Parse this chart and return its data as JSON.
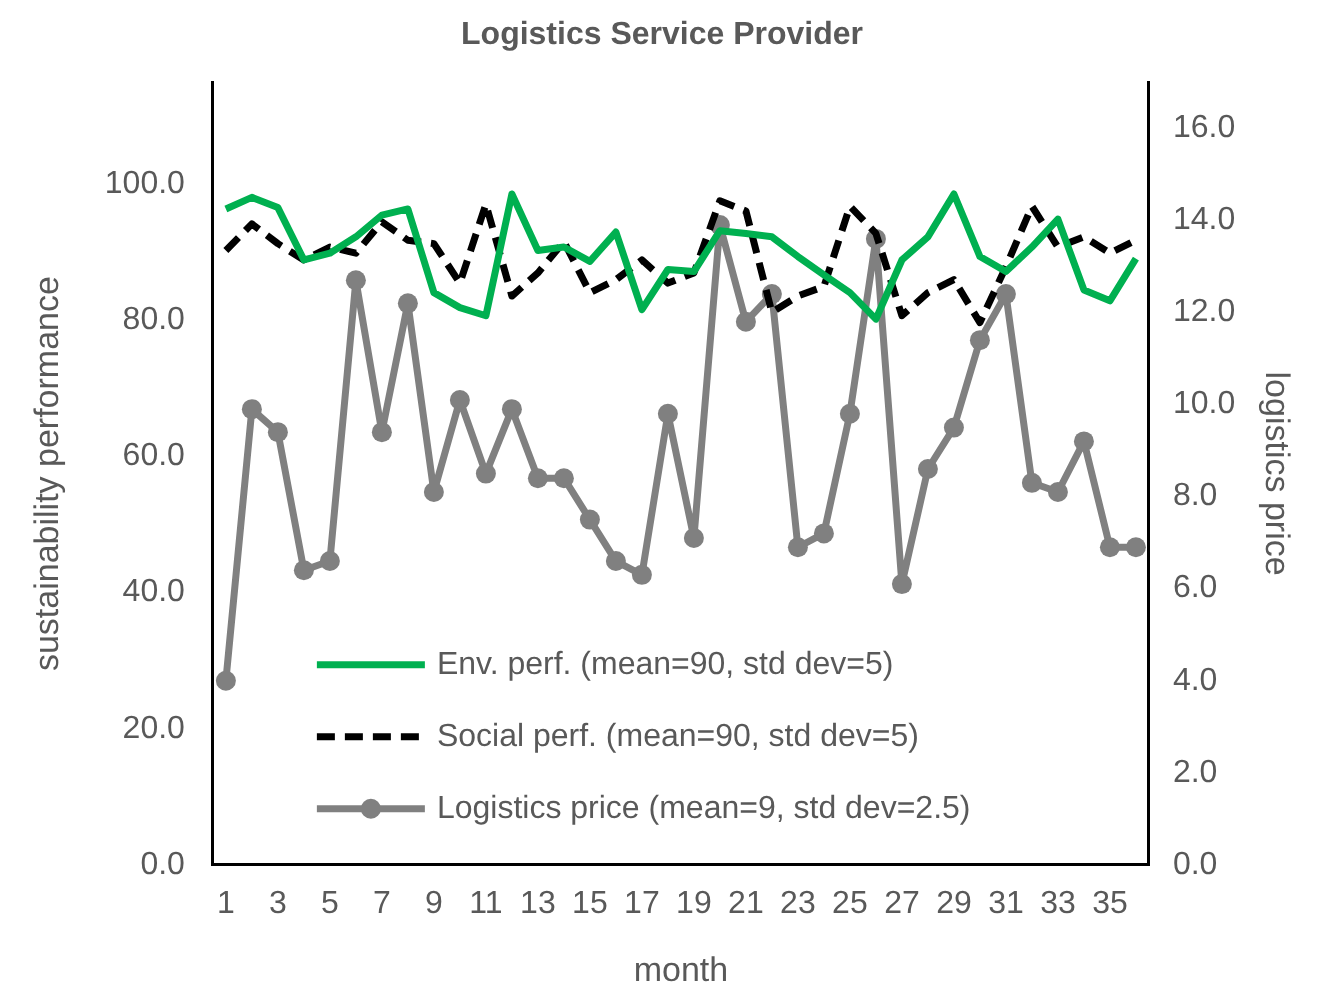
{
  "chart_data": {
    "type": "line",
    "title": "Logistics Service Provider",
    "xlabel": "month",
    "ylabel": "sustainability performance",
    "y2label": "logistics price",
    "x": [
      1,
      2,
      3,
      4,
      5,
      6,
      7,
      8,
      9,
      10,
      11,
      12,
      13,
      14,
      15,
      16,
      17,
      18,
      19,
      20,
      21,
      22,
      23,
      24,
      25,
      26,
      27,
      28,
      29,
      30,
      31,
      32,
      33,
      34,
      35,
      36
    ],
    "xlim": [
      0.5,
      36.5
    ],
    "xticks": [
      1,
      3,
      5,
      7,
      9,
      11,
      13,
      15,
      17,
      19,
      21,
      23,
      25,
      27,
      29,
      31,
      33,
      35
    ],
    "series": [
      {
        "name": "Env. perf. (mean=90, std dev=5)",
        "color": "#00b050",
        "line_style": "solid",
        "marker": "none",
        "values": [
          96.4,
          98.1,
          96.6,
          88.9,
          89.9,
          92.3,
          95.5,
          96.4,
          84.1,
          81.9,
          80.7,
          98.6,
          90.3,
          90.8,
          88.7,
          93.0,
          81.6,
          87.5,
          87.2,
          93.2,
          92.8,
          92.3,
          89.4,
          86.7,
          84.1,
          80.2,
          88.9,
          92.3,
          98.6,
          89.4,
          87.2,
          90.8,
          94.9,
          84.5,
          82.9,
          89.1
        ]
      },
      {
        "name": "Social perf. (mean=90, std dev=5)",
        "color": "#000000",
        "line_style": "dashed",
        "marker": "none",
        "values": [
          90.3,
          94.2,
          91.3,
          88.9,
          90.8,
          89.9,
          94.5,
          91.8,
          91.3,
          85.5,
          97.1,
          83.6,
          87.0,
          91.6,
          84.1,
          86.0,
          88.9,
          85.5,
          87.0,
          97.6,
          96.1,
          81.2,
          83.6,
          85.0,
          96.8,
          92.8,
          80.7,
          84.1,
          86.0,
          79.7,
          87.9,
          96.8,
          90.8,
          92.3,
          89.9,
          91.8
        ]
      },
      {
        "name": "Logistics price (mean=9, std dev=2.5)",
        "color": "#808080",
        "line_style": "solid",
        "marker": "circle",
        "axis": "y2",
        "values": [
          4.0,
          9.9,
          9.4,
          6.4,
          6.6,
          12.7,
          9.4,
          12.2,
          8.1,
          10.1,
          8.5,
          9.9,
          8.4,
          8.4,
          7.5,
          6.6,
          6.3,
          9.8,
          7.1,
          13.9,
          11.8,
          12.4,
          6.9,
          7.2,
          9.8,
          13.6,
          6.1,
          8.6,
          9.5,
          11.4,
          12.4,
          8.3,
          8.1,
          9.2,
          6.9,
          6.9
        ]
      }
    ],
    "ylim": [
      0,
      115
    ],
    "yticks": [
      {
        "value": 0,
        "label": "0.0"
      },
      {
        "value": 20,
        "label": "20.0"
      },
      {
        "value": 40,
        "label": "40.0"
      },
      {
        "value": 60,
        "label": "60.0"
      },
      {
        "value": 80,
        "label": "80.0"
      },
      {
        "value": 100,
        "label": "100.0"
      }
    ],
    "y2lim": [
      0,
      17
    ],
    "y2ticks": [
      {
        "value": 0,
        "label": "0.0"
      },
      {
        "value": 2,
        "label": "2.0"
      },
      {
        "value": 4,
        "label": "4.0"
      },
      {
        "value": 6,
        "label": "6.0"
      },
      {
        "value": 8,
        "label": "8.0"
      },
      {
        "value": 10,
        "label": "10.0"
      },
      {
        "value": 12,
        "label": "12.0"
      },
      {
        "value": 14,
        "label": "14.0"
      },
      {
        "value": 16,
        "label": "16.0"
      }
    ],
    "grid": false,
    "legend": "bottom"
  }
}
